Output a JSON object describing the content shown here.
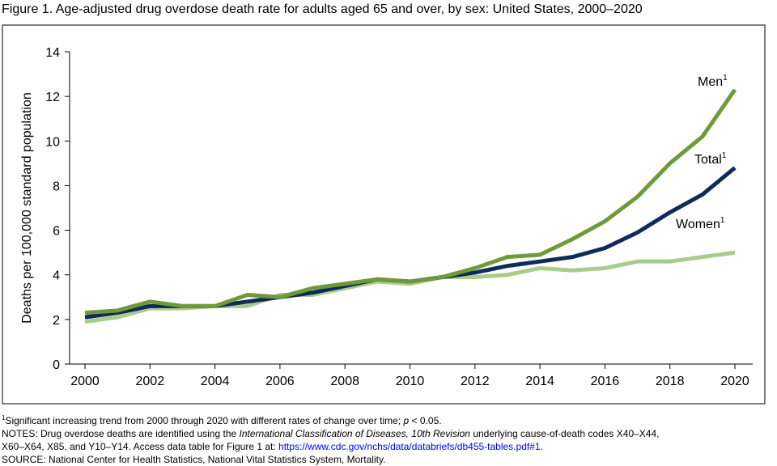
{
  "chart_data": {
    "type": "line",
    "title": "Figure 1. Age-adjusted drug overdose death rate for adults aged 65 and over, by sex: United States, 2000–2020",
    "y_label": "Deaths per 100,000 standard population",
    "x": [
      2000,
      2001,
      2002,
      2003,
      2004,
      2005,
      2006,
      2007,
      2008,
      2009,
      2010,
      2011,
      2012,
      2013,
      2014,
      2015,
      2016,
      2017,
      2018,
      2019,
      2020
    ],
    "xlim": [
      2000,
      2020
    ],
    "xticks": [
      2000,
      2002,
      2004,
      2006,
      2008,
      2010,
      2012,
      2014,
      2016,
      2018,
      2020
    ],
    "ylim": [
      0,
      14
    ],
    "yticks": [
      0,
      2,
      4,
      6,
      8,
      10,
      12,
      14
    ],
    "label_marker": "1",
    "series": [
      {
        "name": "Women",
        "color": "#a9cc8a",
        "values": [
          1.9,
          2.1,
          2.5,
          2.5,
          2.6,
          2.6,
          3.1,
          3.1,
          3.4,
          3.7,
          3.6,
          3.9,
          3.9,
          4.0,
          4.3,
          4.2,
          4.3,
          4.6,
          4.6,
          4.8,
          5.0
        ]
      },
      {
        "name": "Total",
        "color": "#0e2b5c",
        "values": [
          2.1,
          2.3,
          2.6,
          2.6,
          2.6,
          2.8,
          3.0,
          3.2,
          3.5,
          3.8,
          3.7,
          3.9,
          4.1,
          4.4,
          4.6,
          4.8,
          5.2,
          5.9,
          6.8,
          7.6,
          8.8
        ]
      },
      {
        "name": "Men",
        "color": "#6f9a3a",
        "values": [
          2.3,
          2.4,
          2.8,
          2.6,
          2.6,
          3.1,
          3.0,
          3.4,
          3.6,
          3.8,
          3.7,
          3.9,
          4.3,
          4.8,
          4.9,
          5.6,
          6.4,
          7.5,
          9.0,
          10.2,
          12.3
        ]
      }
    ],
    "notes": [
      [
        "Significant increasing trend from 2000 through 2020 with different rates of change over time; ",
        "p",
        " < 0.05."
      ],
      [
        "NOTES: Drug overdose deaths are identified using the ",
        "International Classification of Diseases, 10th Revision",
        " underlying cause-of-death codes X40–X44,"
      ],
      [
        "X60–X64, X85, and Y10–Y14. Access data table for Figure 1 at: ",
        "https://www.cdc.gov/nchs/data/databriefs/db455-tables.pdf#1",
        "."
      ],
      [
        "SOURCE: National Center for Health Statistics, National Vital Statistics System, Mortality."
      ]
    ]
  }
}
